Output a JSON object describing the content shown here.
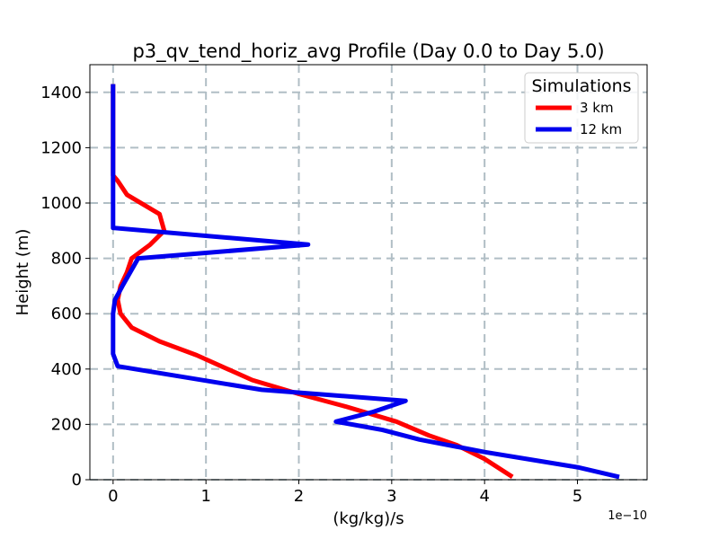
{
  "chart_data": {
    "type": "line",
    "title": "p3_qv_tend_horiz_avg Profile (Day 0.0 to Day 5.0)",
    "xlabel": "(kg/kg)/s",
    "ylabel": "Height (m)",
    "x_offset_label": "1e−10",
    "xlim": [
      -0.25,
      5.75
    ],
    "ylim": [
      0,
      1500
    ],
    "xticks": [
      0,
      1,
      2,
      3,
      4,
      5
    ],
    "xtick_labels": [
      "0",
      "1",
      "2",
      "3",
      "4",
      "5"
    ],
    "yticks": [
      0,
      200,
      400,
      600,
      800,
      1000,
      1200,
      1400
    ],
    "ytick_labels": [
      "0",
      "200",
      "400",
      "600",
      "800",
      "1000",
      "1200",
      "1400"
    ],
    "grid": true,
    "legend": {
      "title": "Simulations",
      "placement": "top-right"
    },
    "series": [
      {
        "name": "3 km",
        "color": "#ff0000",
        "points": [
          [
            4.3,
            10
          ],
          [
            4.0,
            75
          ],
          [
            3.7,
            125
          ],
          [
            3.4,
            160
          ],
          [
            3.05,
            210
          ],
          [
            2.5,
            265
          ],
          [
            2.0,
            310
          ],
          [
            1.5,
            360
          ],
          [
            1.2,
            405
          ],
          [
            0.9,
            450
          ],
          [
            0.5,
            500
          ],
          [
            0.2,
            550
          ],
          [
            0.08,
            600
          ],
          [
            0.05,
            650
          ],
          [
            0.08,
            700
          ],
          [
            0.15,
            750
          ],
          [
            0.2,
            800
          ],
          [
            0.4,
            850
          ],
          [
            0.55,
            900
          ],
          [
            0.5,
            960
          ],
          [
            0.15,
            1030
          ],
          [
            0.05,
            1080
          ],
          [
            0.0,
            1100
          ],
          [
            0.0,
            1200
          ],
          [
            0.0,
            1300
          ],
          [
            0.0,
            1430
          ]
        ]
      },
      {
        "name": "12 km",
        "color": "#0000ee",
        "points": [
          [
            5.45,
            10
          ],
          [
            5.0,
            45
          ],
          [
            4.0,
            100
          ],
          [
            3.3,
            145
          ],
          [
            2.9,
            180
          ],
          [
            2.4,
            210
          ],
          [
            2.8,
            245
          ],
          [
            3.15,
            285
          ],
          [
            1.6,
            325
          ],
          [
            0.05,
            410
          ],
          [
            0.0,
            455
          ],
          [
            0.0,
            500
          ],
          [
            0.0,
            550
          ],
          [
            0.0,
            600
          ],
          [
            0.02,
            650
          ],
          [
            0.1,
            700
          ],
          [
            0.27,
            800
          ],
          [
            2.1,
            850
          ],
          [
            0.0,
            910
          ],
          [
            0.0,
            1000
          ],
          [
            0.0,
            1100
          ],
          [
            0.0,
            1200
          ],
          [
            0.0,
            1300
          ],
          [
            0.0,
            1430
          ]
        ]
      }
    ]
  }
}
